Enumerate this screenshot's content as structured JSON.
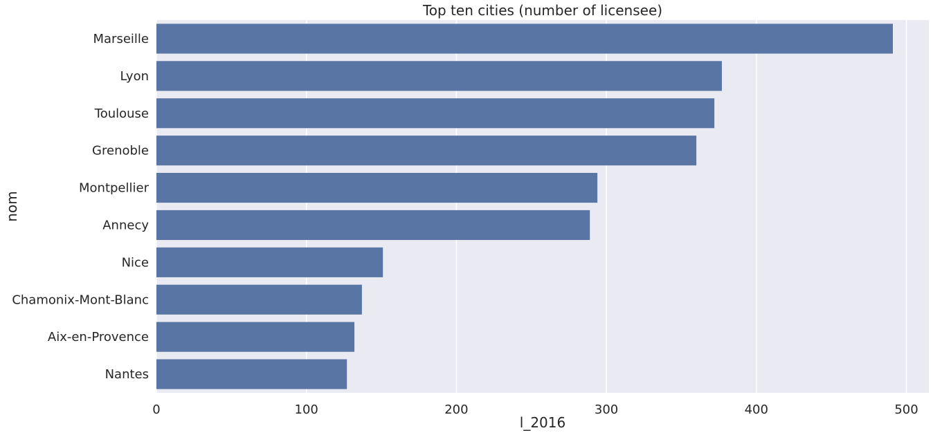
{
  "chart_data": {
    "type": "bar",
    "orientation": "horizontal",
    "title": "Top ten cities (number of licensee)",
    "xlabel": "l_2016",
    "ylabel": "nom",
    "categories": [
      "Marseille",
      "Lyon",
      "Toulouse",
      "Grenoble",
      "Montpellier",
      "Annecy",
      "Nice",
      "Chamonix-Mont-Blanc",
      "Aix-en-Provence",
      "Nantes"
    ],
    "values": [
      491,
      377,
      372,
      360,
      294,
      289,
      151,
      137,
      132,
      127
    ],
    "xlim": [
      0,
      515
    ],
    "xticks": [
      0,
      100,
      200,
      300,
      400,
      500
    ],
    "grid": true,
    "bar_color": "#5975a4",
    "background_color": "#eaeaf2",
    "grid_color": "#ffffff"
  }
}
